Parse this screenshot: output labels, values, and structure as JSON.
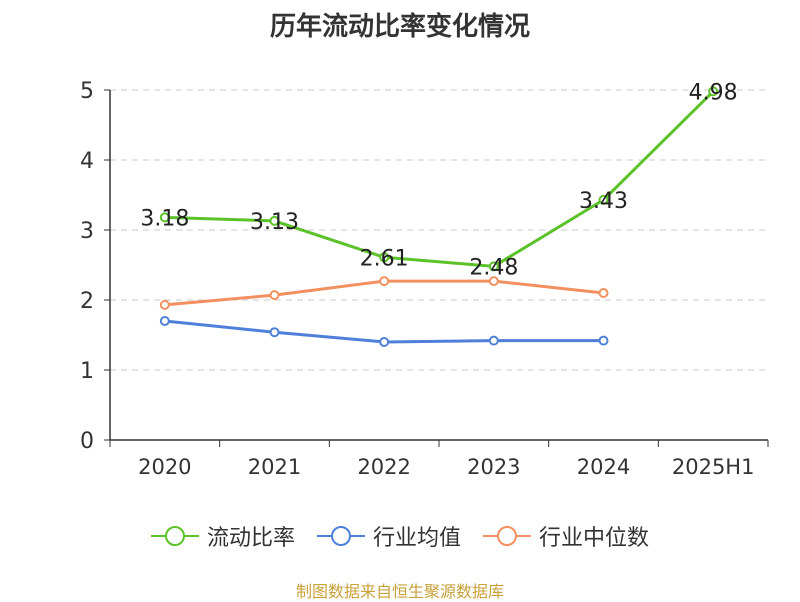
{
  "title": "历年流动比率变化情况",
  "chart_data": {
    "type": "line",
    "categories": [
      "2020",
      "2021",
      "2022",
      "2023",
      "2024",
      "2025H1"
    ],
    "ylim": [
      0,
      5
    ],
    "yticks": [
      0,
      1,
      2,
      3,
      4,
      5
    ],
    "grid": true,
    "legend_position": "bottom",
    "series": [
      {
        "name": "流动比率",
        "color": "#5bc229",
        "values": [
          3.18,
          3.13,
          2.61,
          2.48,
          3.43,
          4.98
        ],
        "labels": [
          "3.18",
          "3.13",
          "2.61",
          "2.48",
          "3.43",
          "4.98"
        ]
      },
      {
        "name": "行业均值",
        "color": "#4f80d9",
        "values": [
          1.7,
          1.54,
          1.4,
          1.42,
          1.42,
          null
        ]
      },
      {
        "name": "行业中位数",
        "color": "#f39060",
        "values": [
          1.93,
          2.07,
          2.27,
          2.27,
          2.1,
          null
        ]
      }
    ]
  },
  "source": "制图数据来自恒生聚源数据库"
}
